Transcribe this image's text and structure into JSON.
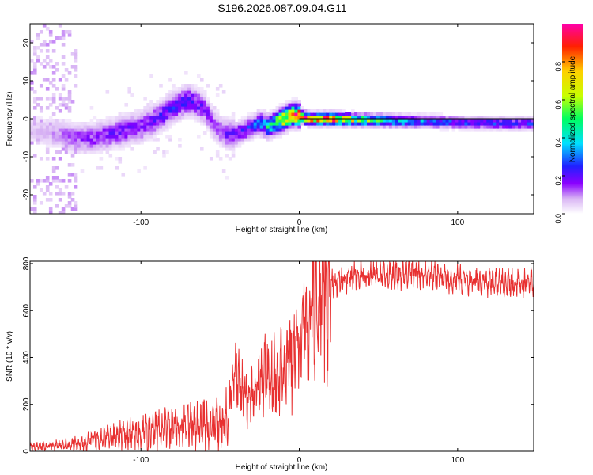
{
  "title": "S196.2026.087.09.04.G11",
  "chart_data": [
    {
      "type": "heatmap",
      "name": "spectrogram",
      "xlabel": "Height of straight line (km)",
      "ylabel": "Frequency (Hz)",
      "xlim": [
        -170,
        148
      ],
      "ylim": [
        -25,
        25
      ],
      "xticks": [
        -100,
        0,
        100
      ],
      "yticks": [
        -20,
        -10,
        0,
        10,
        20
      ],
      "colorbar": {
        "label": "Normalized spectral amplitude",
        "range": [
          0,
          1
        ],
        "ticks": [
          "0.0",
          "0.2",
          "0.4",
          "0.6",
          "0.8"
        ],
        "colormap": [
          "#ffffff",
          "#d8b4f4",
          "#8a00ff",
          "#2020ff",
          "#00e0ff",
          "#00ff60",
          "#c8ff00",
          "#ffd000",
          "#ff2000",
          "#ff00aa"
        ]
      },
      "ridge": {
        "x": [
          -165,
          -150,
          -140,
          -130,
          -120,
          -110,
          -100,
          -90,
          -80,
          -70,
          -60,
          -55,
          -50,
          -45,
          -40,
          -35,
          -30,
          -25,
          -20,
          -15,
          -10,
          -5,
          0,
          5,
          10,
          20,
          40,
          60,
          80,
          100,
          120,
          140,
          148
        ],
        "freq": [
          -3,
          -4,
          -5,
          -5,
          -4,
          -3,
          -2,
          0,
          3,
          5,
          3,
          -1,
          -3,
          -4,
          -4,
          -3,
          -2,
          -1,
          -2,
          -1,
          0,
          1,
          1,
          0,
          0,
          0,
          -0.3,
          -0.5,
          -0.7,
          -0.9,
          -1.1,
          -1.2,
          -1.2
        ],
        "amplitude": [
          0.1,
          0.15,
          0.2,
          0.22,
          0.25,
          0.25,
          0.25,
          0.28,
          0.3,
          0.3,
          0.25,
          0.2,
          0.2,
          0.25,
          0.28,
          0.3,
          0.32,
          0.4,
          0.5,
          0.6,
          0.8,
          0.85,
          0.95,
          0.9,
          0.95,
          0.9,
          0.65,
          0.5,
          0.4,
          0.35,
          0.35,
          0.35,
          0.35
        ]
      }
    },
    {
      "type": "line",
      "name": "snr",
      "xlabel": "Height of straight line (km)",
      "ylabel": "SNR (10 * v/v)",
      "xlim": [
        -170,
        148
      ],
      "ylim": [
        0,
        810
      ],
      "xticks": [
        -100,
        0,
        100
      ],
      "yticks": [
        0,
        200,
        400,
        600,
        800
      ],
      "series": [
        {
          "name": "SNR",
          "color": "#e83030",
          "x": [
            -170,
            -150,
            -140,
            -130,
            -120,
            -110,
            -100,
            -90,
            -80,
            -70,
            -60,
            -50,
            -45,
            -42,
            -40,
            -35,
            -30,
            -25,
            -20,
            -15,
            -10,
            -5,
            0,
            5,
            10,
            15,
            20,
            25,
            30,
            40,
            50,
            60,
            70,
            80,
            90,
            100,
            110,
            120,
            130,
            140,
            148
          ],
          "y": [
            20,
            25,
            35,
            50,
            60,
            70,
            80,
            90,
            100,
            110,
            115,
            110,
            150,
            300,
            300,
            240,
            230,
            300,
            320,
            320,
            330,
            420,
            480,
            550,
            640,
            690,
            710,
            720,
            740,
            750,
            760,
            750,
            760,
            750,
            740,
            730,
            730,
            720,
            720,
            720,
            720
          ]
        }
      ]
    }
  ]
}
